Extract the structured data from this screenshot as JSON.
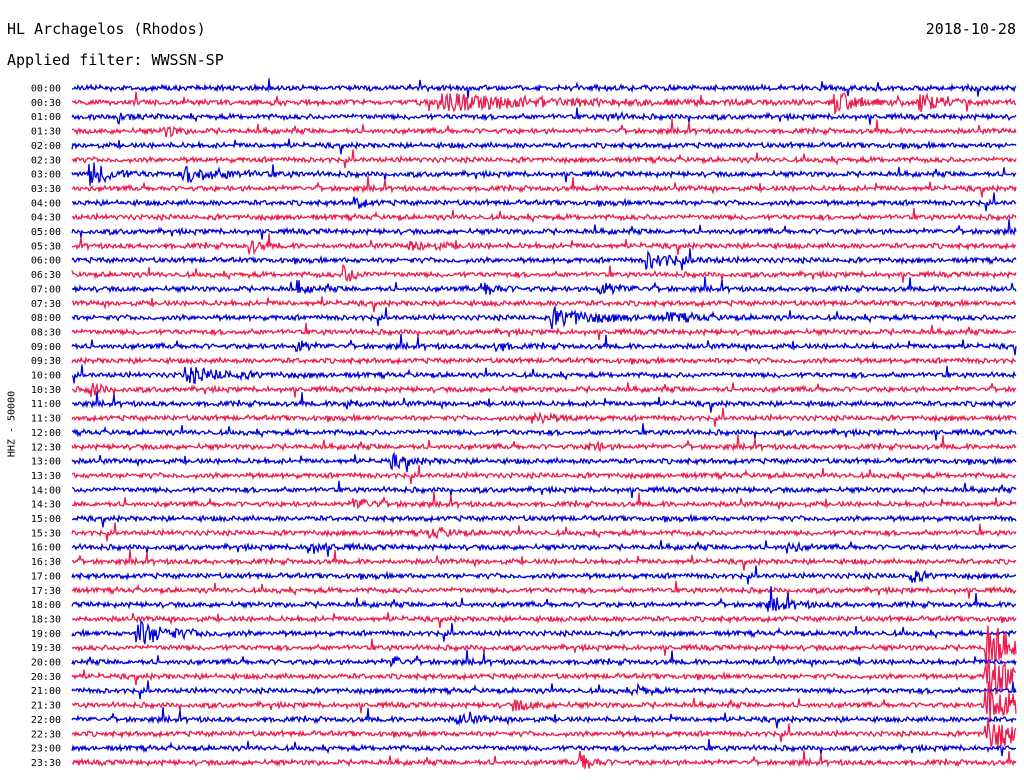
{
  "header": {
    "station": "HL Archagelos (Rhodos)",
    "date": "2018-10-28",
    "filter": "Applied filter: WWSSN-SP"
  },
  "chart_data": {
    "type": "line",
    "ylabel": "HHZ - 50000",
    "row_labels": [
      "00:00",
      "00:30",
      "01:00",
      "01:30",
      "02:00",
      "02:30",
      "03:00",
      "03:30",
      "04:00",
      "04:30",
      "05:00",
      "05:30",
      "06:00",
      "06:30",
      "07:00",
      "07:30",
      "08:00",
      "08:30",
      "09:00",
      "09:30",
      "10:00",
      "10:30",
      "11:00",
      "11:30",
      "12:00",
      "12:30",
      "13:00",
      "13:30",
      "14:00",
      "14:30",
      "15:00",
      "15:30",
      "16:00",
      "16:30",
      "17:00",
      "17:30",
      "18:00",
      "18:30",
      "19:00",
      "19:30",
      "20:00",
      "20:30",
      "21:00",
      "21:30",
      "22:00",
      "22:30",
      "23:00",
      "23:30"
    ],
    "colors": [
      "#0000dd",
      "#ee1c4e"
    ],
    "events": [
      {
        "row": 1,
        "time": 0.39,
        "amp": 0.9,
        "dur": 0.1
      },
      {
        "row": 1,
        "time": 0.81,
        "amp": 1.1,
        "dur": 0.02
      },
      {
        "row": 1,
        "time": 0.9,
        "amp": 0.9,
        "dur": 0.02
      },
      {
        "row": 2,
        "time": 0.05,
        "amp": 0.5,
        "dur": 0.01
      },
      {
        "row": 2,
        "time": 0.57,
        "amp": 0.4,
        "dur": 0.01
      },
      {
        "row": 3,
        "time": 0.1,
        "amp": 0.6,
        "dur": 0.01
      },
      {
        "row": 6,
        "time": 0.02,
        "amp": 1.3,
        "dur": 0.02
      },
      {
        "row": 6,
        "time": 0.12,
        "amp": 0.8,
        "dur": 0.04
      },
      {
        "row": 8,
        "time": 0.3,
        "amp": 0.6,
        "dur": 0.01
      },
      {
        "row": 11,
        "time": 0.19,
        "amp": 0.7,
        "dur": 0.01
      },
      {
        "row": 11,
        "time": 0.36,
        "amp": 0.4,
        "dur": 0.03
      },
      {
        "row": 12,
        "time": 0.61,
        "amp": 0.8,
        "dur": 0.03
      },
      {
        "row": 13,
        "time": 0.29,
        "amp": 0.9,
        "dur": 0.01
      },
      {
        "row": 14,
        "time": 0.24,
        "amp": 0.7,
        "dur": 0.01
      },
      {
        "row": 14,
        "time": 0.44,
        "amp": 0.7,
        "dur": 0.01
      },
      {
        "row": 14,
        "time": 0.56,
        "amp": 0.6,
        "dur": 0.02
      },
      {
        "row": 16,
        "time": 0.51,
        "amp": 1.0,
        "dur": 0.04
      },
      {
        "row": 16,
        "time": 0.63,
        "amp": 0.4,
        "dur": 0.03
      },
      {
        "row": 18,
        "time": 0.24,
        "amp": 0.6,
        "dur": 0.01
      },
      {
        "row": 18,
        "time": 0.45,
        "amp": 0.5,
        "dur": 0.01
      },
      {
        "row": 20,
        "time": 0.12,
        "amp": 0.8,
        "dur": 0.04
      },
      {
        "row": 21,
        "time": 0.02,
        "amp": 0.8,
        "dur": 0.01
      },
      {
        "row": 22,
        "time": 0.29,
        "amp": 0.6,
        "dur": 0.01
      },
      {
        "row": 23,
        "time": 0.49,
        "amp": 0.6,
        "dur": 0.02
      },
      {
        "row": 25,
        "time": 0.55,
        "amp": 0.6,
        "dur": 0.01
      },
      {
        "row": 26,
        "time": 0.34,
        "amp": 0.6,
        "dur": 0.02
      },
      {
        "row": 29,
        "time": 0.3,
        "amp": 0.6,
        "dur": 0.02
      },
      {
        "row": 31,
        "time": 0.38,
        "amp": 0.5,
        "dur": 0.02
      },
      {
        "row": 32,
        "time": 0.25,
        "amp": 0.6,
        "dur": 0.02
      },
      {
        "row": 32,
        "time": 0.76,
        "amp": 0.6,
        "dur": 0.01
      },
      {
        "row": 34,
        "time": 0.89,
        "amp": 0.7,
        "dur": 0.01
      },
      {
        "row": 36,
        "time": 0.74,
        "amp": 0.7,
        "dur": 0.02
      },
      {
        "row": 38,
        "time": 0.07,
        "amp": 1.3,
        "dur": 0.03
      },
      {
        "row": 40,
        "time": 0.34,
        "amp": 0.6,
        "dur": 0.01
      },
      {
        "row": 42,
        "time": 0.6,
        "amp": 0.5,
        "dur": 0.01
      },
      {
        "row": 43,
        "time": 0.47,
        "amp": 0.5,
        "dur": 0.02
      },
      {
        "row": 44,
        "time": 0.41,
        "amp": 0.5,
        "dur": 0.02
      },
      {
        "row": 47,
        "time": 0.54,
        "amp": 1.2,
        "dur": 0.01
      },
      {
        "row": 39,
        "time": 0.97,
        "amp": 2.5,
        "dur": 0.03
      },
      {
        "row": 41,
        "time": 0.97,
        "amp": 2.5,
        "dur": 0.03
      },
      {
        "row": 43,
        "time": 0.97,
        "amp": 2.5,
        "dur": 0.03
      },
      {
        "row": 45,
        "time": 0.97,
        "amp": 2.0,
        "dur": 0.03
      }
    ]
  }
}
